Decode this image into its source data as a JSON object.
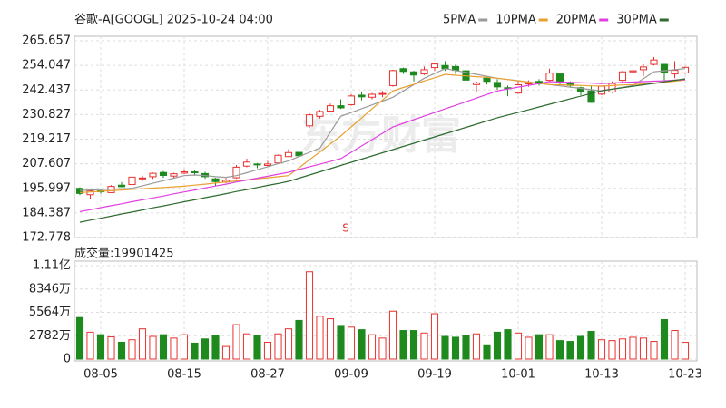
{
  "chart_data": {
    "type": "candlestick",
    "title": "谷歌-A[GOOGL] 2025-10-24 04:00",
    "watermark": "东方财富",
    "annotations": [
      {
        "text": "S"
      }
    ],
    "up_color": "#e8312f",
    "down_color": "#1e8a1e",
    "grid": true,
    "categories": [
      null,
      null,
      "08-05",
      null,
      null,
      null,
      null,
      null,
      null,
      null,
      "08-15",
      null,
      null,
      null,
      null,
      null,
      null,
      null,
      "08-27",
      null,
      null,
      null,
      null,
      null,
      null,
      null,
      "09-09",
      null,
      null,
      null,
      null,
      null,
      null,
      null,
      "09-19",
      null,
      null,
      null,
      null,
      null,
      null,
      null,
      "10-01",
      null,
      null,
      null,
      null,
      null,
      null,
      null,
      "10-13",
      null,
      null,
      null,
      null,
      null,
      null,
      null,
      "10-23"
    ],
    "open": [
      196.0,
      193.0,
      194.8,
      194.0,
      197.5,
      197.8,
      200.5,
      201.5,
      203.5,
      201.8,
      203.2,
      203.8,
      203.0,
      200.5,
      199.0,
      201.0,
      206.5,
      207.5,
      206.8,
      208.0,
      211.0,
      213.0,
      225.5,
      230.0,
      232.5,
      235.0,
      235.5,
      240.0,
      239.0,
      240.5,
      244.5,
      252.5,
      251.0,
      250.0,
      253.0,
      254.0,
      253.5,
      251.5,
      245.0,
      248.0,
      246.0,
      243.5,
      241.0,
      245.5,
      246.5,
      247.0,
      250.0,
      245.5,
      243.5,
      242.0,
      240.5,
      241.5,
      247.0,
      251.0,
      252.0,
      254.5,
      254.5,
      250.0,
      250.5
    ],
    "high": [
      196.5,
      195.2,
      195.5,
      197.5,
      199.0,
      201.8,
      202.0,
      203.5,
      204.2,
      203.4,
      205.0,
      204.5,
      203.8,
      201.0,
      200.8,
      207.0,
      210.0,
      208.0,
      209.0,
      212.0,
      214.5,
      213.5,
      231.5,
      233.0,
      236.0,
      238.0,
      240.5,
      241.5,
      241.0,
      242.0,
      252.0,
      253.0,
      251.5,
      253.5,
      255.0,
      256.0,
      254.5,
      252.0,
      246.5,
      249.0,
      247.5,
      244.5,
      246.5,
      247.0,
      247.5,
      252.5,
      250.5,
      246.5,
      244.0,
      244.5,
      244.5,
      246.5,
      251.5,
      253.5,
      254.5,
      258.0,
      254.8,
      256.0,
      253.5
    ],
    "low": [
      192.8,
      191.0,
      193.5,
      193.8,
      196.5,
      197.5,
      199.5,
      200.5,
      201.0,
      201.0,
      202.8,
      202.0,
      200.5,
      197.0,
      198.5,
      200.5,
      206.0,
      205.5,
      206.5,
      207.8,
      210.8,
      208.5,
      224.5,
      229.0,
      232.0,
      233.5,
      235.0,
      237.5,
      238.0,
      239.0,
      244.0,
      250.0,
      246.5,
      249.5,
      251.5,
      251.5,
      250.0,
      246.5,
      241.5,
      245.0,
      242.5,
      239.5,
      240.5,
      244.0,
      244.5,
      246.5,
      245.0,
      243.5,
      240.0,
      236.5,
      240.0,
      241.0,
      246.0,
      249.0,
      249.0,
      254.0,
      247.0,
      248.0,
      250.0
    ],
    "close": [
      193.6,
      194.8,
      194.5,
      196.9,
      196.8,
      201.3,
      200.9,
      203.1,
      202.1,
      202.9,
      203.8,
      203.4,
      201.5,
      199.2,
      199.8,
      206.0,
      208.4,
      207.1,
      207.5,
      211.6,
      212.9,
      211.4,
      230.7,
      232.3,
      235.0,
      234.0,
      239.6,
      239.2,
      240.4,
      240.8,
      251.6,
      251.2,
      249.5,
      252.0,
      254.7,
      252.5,
      251.7,
      247.1,
      245.8,
      246.5,
      243.9,
      243.1,
      244.9,
      245.7,
      245.4,
      250.4,
      245.8,
      244.6,
      241.5,
      236.6,
      244.2,
      245.5,
      251.0,
      251.5,
      253.3,
      256.6,
      250.5,
      251.7,
      253.1
    ],
    "ylim": [
      172.778,
      265.657
    ],
    "yticks": [
      172.778,
      184.387,
      195.997,
      207.607,
      219.217,
      230.827,
      242.437,
      254.047,
      265.657
    ],
    "ma_series": [
      {
        "name": "5PMA",
        "color": "#9a9a9a",
        "values": [
          195,
          195.2,
          195.4,
          195.6,
          195.8,
          196,
          197.2,
          198.4,
          199.6,
          200.8,
          202,
          202.3,
          202,
          201.5,
          201.2,
          202,
          203.4,
          204.8,
          206.2,
          207.6,
          209,
          211,
          213,
          215,
          222.5,
          230,
          231.8,
          233.6,
          235.4,
          237.2,
          239,
          242,
          245,
          248,
          250.3,
          252.5,
          251.6,
          250.7,
          249.8,
          248.9,
          248,
          247.4,
          246.8,
          246.2,
          245.6,
          245,
          244.4,
          243.8,
          243.2,
          242.6,
          242,
          242.8,
          243.7,
          244.5,
          247.8,
          251,
          251.5,
          252,
          252.5
        ]
      },
      {
        "name": "10PMA",
        "color": "#e8a030",
        "values": [
          194,
          194.3,
          194.6,
          194.9,
          195.2,
          195.5,
          195.8,
          196.1,
          196.4,
          196.7,
          197,
          197.5,
          198,
          198.5,
          199,
          199.5,
          200,
          200.5,
          201,
          201.5,
          202,
          205.7,
          209.5,
          213.2,
          217,
          220.7,
          225,
          229.2,
          233.5,
          237.7,
          242,
          243.6,
          245.1,
          246.7,
          248.2,
          249.8,
          249.4,
          249.1,
          248.7,
          248.4,
          248,
          247.4,
          246.8,
          246.2,
          245.6,
          245,
          244.9,
          244.7,
          244.6,
          244.4,
          244.3,
          244.5,
          244.8,
          245,
          245.3,
          245.5,
          246.1,
          246.6,
          247.2
        ]
      },
      {
        "name": "20PMA",
        "color": "#e040e0",
        "values": [
          185,
          185.9,
          186.9,
          187.8,
          188.7,
          189.7,
          190.6,
          191.5,
          192.4,
          193.4,
          194.3,
          195.2,
          196.2,
          197.1,
          198,
          199,
          199.9,
          200.8,
          201.7,
          202.7,
          203.6,
          204.9,
          206.2,
          207.4,
          208.7,
          210,
          213,
          216,
          219,
          222,
          225,
          226.7,
          228.4,
          230.1,
          231.8,
          233.5,
          235.2,
          236.9,
          238.6,
          240.3,
          242,
          242.9,
          243.8,
          244.6,
          245.5,
          246.4,
          246.2,
          246,
          245.9,
          245.7,
          245.5,
          245.7,
          246,
          246.2,
          246.4,
          246.6,
          246.8,
          247.1,
          247.3
        ]
      },
      {
        "name": "30PMA",
        "color": "#2f6b2f",
        "values": [
          180,
          181,
          181.9,
          182.9,
          183.9,
          184.8,
          185.8,
          186.8,
          187.7,
          188.7,
          189.7,
          190.6,
          191.6,
          192.5,
          193.5,
          194.5,
          195.4,
          196.4,
          197.4,
          198.3,
          199.3,
          200.8,
          202.3,
          203.8,
          205.3,
          206.8,
          208.3,
          209.8,
          211.3,
          212.8,
          214.3,
          215.8,
          217.3,
          218.8,
          220.3,
          221.8,
          223.3,
          224.8,
          226.3,
          227.8,
          229.3,
          230.6,
          231.9,
          233.1,
          234.4,
          235.7,
          237,
          238.3,
          239.5,
          240.8,
          242.1,
          242.8,
          243.5,
          244.2,
          244.9,
          245.6,
          246.3,
          247,
          247.7
        ]
      }
    ],
    "volume": {
      "title": "成交量:19901425",
      "values": [
        4950,
        3200,
        2900,
        2650,
        2000,
        2300,
        3600,
        2700,
        2900,
        2500,
        2900,
        1900,
        2400,
        2800,
        1500,
        4100,
        3000,
        2800,
        2000,
        3000,
        3600,
        4600,
        10400,
        5100,
        4800,
        3900,
        3800,
        3500,
        2900,
        2500,
        5700,
        3400,
        3400,
        3100,
        5400,
        2700,
        2600,
        2800,
        3000,
        1700,
        3200,
        3500,
        3100,
        2600,
        2900,
        2900,
        2200,
        2100,
        2700,
        3300,
        2300,
        2200,
        2400,
        2600,
        2500,
        2100,
        4700,
        3400,
        1990
      ],
      "ylim": [
        0,
        11128
      ],
      "yticks": [
        0,
        {
          "value": 2782,
          "label": "2782万"
        },
        {
          "value": 5564,
          "label": "5564万"
        },
        {
          "value": 8346,
          "label": "8346万"
        },
        {
          "value": 11128,
          "label": "1.11亿"
        }
      ]
    }
  }
}
